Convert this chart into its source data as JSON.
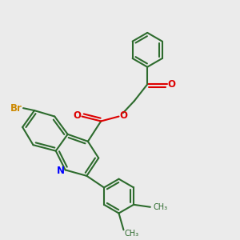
{
  "bg_color": "#ebebeb",
  "bond_color": "#2d6b2d",
  "n_color": "#0000ff",
  "o_color": "#dd0000",
  "br_color": "#cc8800",
  "lw": 1.5,
  "dbo": 0.12,
  "figsize": [
    3.0,
    3.0
  ],
  "dpi": 100,
  "xlim": [
    0,
    10
  ],
  "ylim": [
    0,
    10
  ]
}
